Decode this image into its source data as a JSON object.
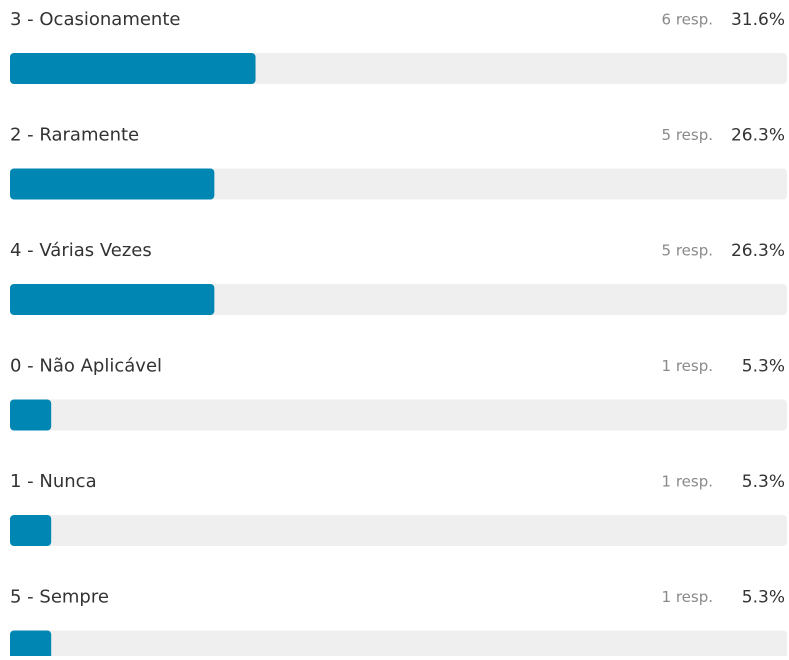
{
  "chart_data": {
    "type": "bar",
    "orientation": "horizontal",
    "categories": [
      "3 - Ocasionamente",
      "2 - Raramente",
      "4 - Várias Vezes",
      "0 - Não Aplicável",
      "1 - Nunca",
      "5 - Sempre"
    ],
    "values": [
      31.6,
      26.3,
      26.3,
      5.3,
      5.3,
      5.3
    ],
    "value_labels": [
      "31.6%",
      "26.3%",
      "26.3%",
      "5.3%",
      "5.3%",
      "5.3%"
    ],
    "responses": [
      6,
      5,
      5,
      1,
      1,
      1
    ],
    "response_labels": [
      "6 resp.",
      "5 resp.",
      "5 resp.",
      "1 resp.",
      "1 resp.",
      "1 resp."
    ],
    "xlim": [
      0,
      100
    ],
    "color": "#0086b3",
    "track_color": "#efefef"
  }
}
